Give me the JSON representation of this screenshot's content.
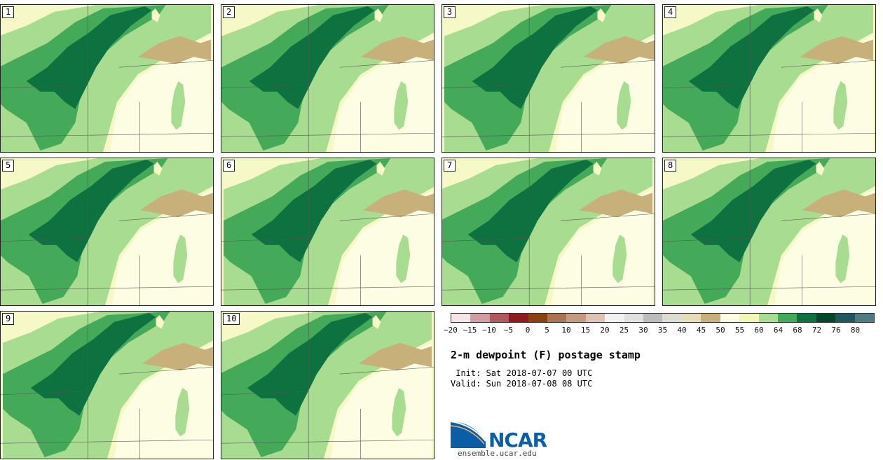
{
  "panels": [
    {
      "label": "1"
    },
    {
      "label": "2"
    },
    {
      "label": "3"
    },
    {
      "label": "4"
    },
    {
      "label": "5"
    },
    {
      "label": "6"
    },
    {
      "label": "7"
    },
    {
      "label": "8"
    },
    {
      "label": "9"
    },
    {
      "label": "10"
    }
  ],
  "colorbar": {
    "colors": [
      "#f4e5e8",
      "#cf9da2",
      "#ae5a5f",
      "#8e1a1f",
      "#8b4110",
      "#a9744f",
      "#c59a83",
      "#dec2b8",
      "#f2f2f2",
      "#e0e0e0",
      "#bcbcbc",
      "#dcdcd2",
      "#e6dcb6",
      "#c8b07a",
      "#fdfde4",
      "#f2f7b8",
      "#a8dc90",
      "#45a95a",
      "#0e7140",
      "#04462a",
      "#20575e",
      "#4f7c80"
    ],
    "labels": [
      "−20",
      "−15",
      "−10",
      "−5",
      "0",
      "5",
      "10",
      "15",
      "20",
      "25",
      "30",
      "35",
      "40",
      "45",
      "50",
      "55",
      "60",
      "64",
      "68",
      "72",
      "76",
      "80"
    ]
  },
  "title": "2-m dewpoint (F) postage stamp",
  "init": " Init: Sat 2018-07-07 00 UTC",
  "valid": "Valid: Sun 2018-07-08 08 UTC",
  "logo": {
    "org": "NCAR",
    "url": "ensemble.ucar.edu",
    "color": "#0a5ea8"
  }
}
